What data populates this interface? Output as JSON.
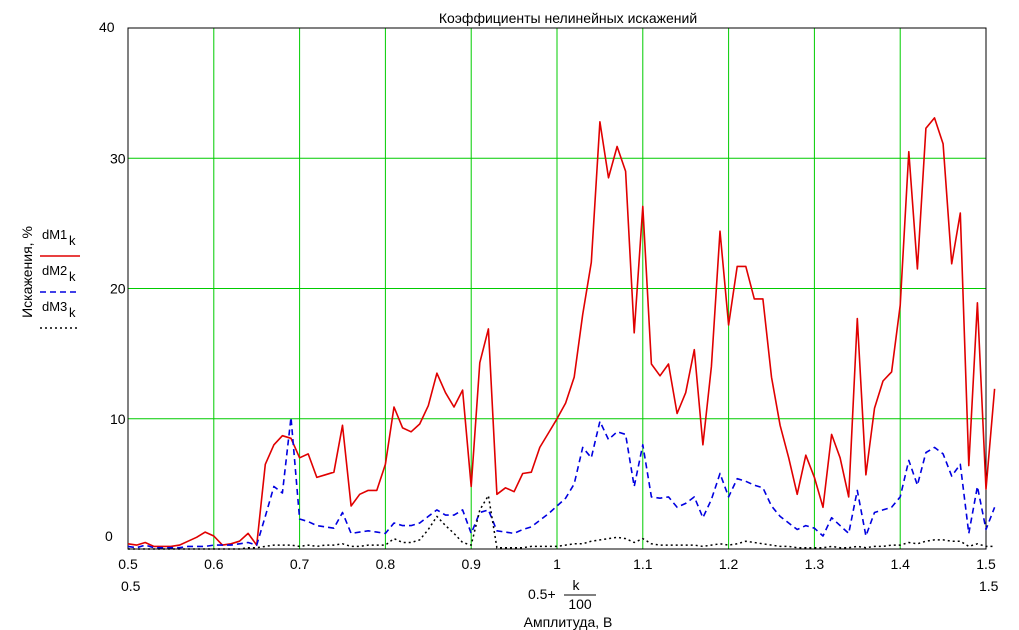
{
  "chart_data": {
    "type": "line",
    "title": "Коэффициенты нелинейных искажений",
    "ylabel": "Искажения, %",
    "xlabel": "Амплитуда, В",
    "x_expr": {
      "prefix": "0.5+",
      "numerator": "k",
      "denominator": "100"
    },
    "xlim": [
      0.5,
      1.5
    ],
    "ylim": [
      0,
      40
    ],
    "x_min_label": "0.5",
    "x_max_label": "1.5",
    "y_min_label": "0",
    "y_max_label": "40",
    "xticks": [
      "0.5",
      "0.6",
      "0.7",
      "0.8",
      "0.9",
      "1",
      "1.1",
      "1.2",
      "1.3",
      "1.4",
      "1.5"
    ],
    "yticks": [
      "0",
      "10",
      "20",
      "30",
      "40"
    ],
    "grid": true,
    "grid_color": "#00cc00",
    "legend_position": "left",
    "series": [
      {
        "name": "dM1",
        "sub": "k",
        "color": "#e00000",
        "style": "solid",
        "values": [
          0.4,
          0.3,
          0.5,
          0.2,
          0.2,
          0.2,
          0.3,
          0.6,
          0.9,
          1.3,
          1.0,
          0.3,
          0.4,
          0.6,
          1.2,
          0.3,
          6.5,
          8.0,
          8.7,
          8.5,
          7.0,
          7.3,
          5.5,
          5.7,
          5.9,
          9.5,
          3.3,
          4.2,
          4.5,
          4.5,
          6.5,
          10.9,
          9.3,
          9.0,
          9.6,
          11.0,
          13.5,
          12.0,
          10.9,
          12.2,
          4.8,
          14.3,
          16.9,
          4.2,
          4.7,
          4.4,
          5.8,
          5.9,
          7.8,
          8.9,
          10.0,
          11.2,
          13.2,
          18.0,
          22.0,
          32.8,
          28.5,
          30.9,
          29.0,
          16.6,
          26.3,
          14.2,
          13.3,
          14.2,
          10.4,
          12.0,
          15.3,
          8.0,
          14.0,
          24.4,
          17.2,
          21.7,
          21.7,
          19.2,
          19.2,
          13.2,
          9.5,
          7.0,
          4.2,
          7.2,
          5.5,
          3.2,
          8.8,
          7.0,
          4.0,
          17.7,
          5.7,
          10.8,
          12.9,
          13.6,
          18.7,
          30.5,
          21.5,
          32.3,
          33.1,
          31.1,
          21.9,
          25.8,
          6.4,
          18.9,
          4.6,
          12.3
        ]
      },
      {
        "name": "dM2",
        "sub": "k",
        "color": "#0000e0",
        "style": "dashed",
        "values": [
          0.2,
          0.1,
          0.3,
          0.1,
          0.1,
          0.1,
          0.1,
          0.2,
          0.2,
          0.2,
          0.3,
          0.3,
          0.3,
          0.4,
          0.5,
          0.3,
          2.5,
          4.8,
          4.3,
          10.1,
          2.3,
          2.1,
          1.8,
          1.7,
          1.6,
          2.8,
          1.2,
          1.3,
          1.4,
          1.3,
          1.2,
          2.0,
          1.8,
          1.8,
          2.0,
          2.5,
          3.0,
          2.6,
          2.6,
          3.0,
          1.2,
          2.8,
          3.0,
          1.4,
          1.3,
          1.2,
          1.5,
          1.7,
          2.2,
          2.7,
          3.3,
          3.9,
          5.0,
          7.8,
          7.0,
          9.8,
          8.4,
          9.0,
          8.8,
          4.8,
          8.0,
          4.0,
          3.9,
          4.0,
          3.2,
          3.5,
          4.0,
          2.4,
          3.8,
          5.8,
          4.0,
          5.4,
          5.2,
          4.9,
          4.7,
          3.3,
          2.5,
          2.0,
          1.5,
          1.8,
          1.6,
          1.0,
          2.4,
          1.8,
          1.2,
          4.5,
          1.0,
          2.8,
          3.0,
          3.2,
          4.0,
          6.8,
          4.9,
          7.4,
          7.8,
          7.3,
          5.6,
          6.5,
          1.2,
          4.8,
          1.5,
          3.2
        ]
      },
      {
        "name": "dM3",
        "sub": "k",
        "color": "#000000",
        "style": "dotted",
        "values": [
          0.0,
          0.0,
          0.0,
          0.0,
          0.0,
          0.0,
          0.0,
          0.0,
          0.0,
          0.0,
          0.0,
          0.0,
          0.0,
          0.0,
          0.1,
          0.1,
          0.2,
          0.3,
          0.3,
          0.3,
          0.2,
          0.3,
          0.2,
          0.3,
          0.3,
          0.4,
          0.2,
          0.2,
          0.3,
          0.3,
          0.3,
          0.8,
          0.5,
          0.5,
          0.7,
          1.5,
          2.5,
          1.8,
          1.2,
          0.5,
          0.3,
          3.0,
          4.1,
          0.1,
          0.1,
          0.1,
          0.1,
          0.2,
          0.2,
          0.2,
          0.2,
          0.3,
          0.4,
          0.4,
          0.6,
          0.7,
          0.8,
          0.9,
          0.8,
          0.5,
          0.8,
          0.4,
          0.3,
          0.3,
          0.3,
          0.3,
          0.3,
          0.2,
          0.3,
          0.4,
          0.3,
          0.4,
          0.6,
          0.5,
          0.4,
          0.3,
          0.2,
          0.2,
          0.1,
          0.1,
          0.1,
          0.1,
          0.2,
          0.1,
          0.1,
          0.2,
          0.1,
          0.2,
          0.2,
          0.3,
          0.3,
          0.5,
          0.4,
          0.6,
          0.7,
          0.7,
          0.6,
          0.6,
          0.2,
          0.4,
          0.2,
          0.2
        ]
      }
    ]
  }
}
